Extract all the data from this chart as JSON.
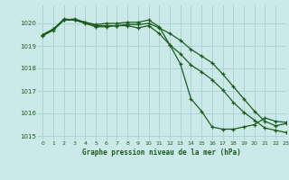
{
  "title": "Graphe pression niveau de la mer (hPa)",
  "background_color": "#cce9e9",
  "grid_color": "#add4d4",
  "line_color": "#1a5c1a",
  "xlim": [
    -0.5,
    23
  ],
  "ylim": [
    1014.8,
    1020.8
  ],
  "yticks": [
    1015,
    1016,
    1017,
    1018,
    1019,
    1020
  ],
  "xticks": [
    0,
    1,
    2,
    3,
    4,
    5,
    6,
    7,
    8,
    9,
    10,
    11,
    12,
    13,
    14,
    15,
    16,
    17,
    18,
    19,
    20,
    21,
    22,
    23
  ],
  "series1": [
    1019.5,
    1019.75,
    1020.15,
    1020.2,
    1020.05,
    1019.95,
    1020.0,
    1020.0,
    1020.05,
    1020.05,
    1020.15,
    1019.85,
    1019.05,
    1018.2,
    1016.65,
    1016.1,
    1015.4,
    1015.3,
    1015.3,
    1015.4,
    1015.5,
    1015.8,
    1015.65,
    1015.6
  ],
  "series2": [
    1019.5,
    1019.75,
    1020.2,
    1020.15,
    1020.05,
    1019.9,
    1019.9,
    1019.9,
    1019.95,
    1019.95,
    1020.0,
    1019.8,
    1019.55,
    1019.25,
    1018.85,
    1018.55,
    1018.25,
    1017.75,
    1017.2,
    1016.65,
    1016.1,
    1015.65,
    1015.45,
    1015.55
  ],
  "series3": [
    1019.45,
    1019.7,
    1020.15,
    1020.15,
    1020.0,
    1019.85,
    1019.85,
    1019.9,
    1019.9,
    1019.8,
    1019.9,
    1019.55,
    1019.05,
    1018.65,
    1018.15,
    1017.85,
    1017.5,
    1017.05,
    1016.5,
    1016.05,
    1015.7,
    1015.35,
    1015.25,
    1015.15
  ]
}
